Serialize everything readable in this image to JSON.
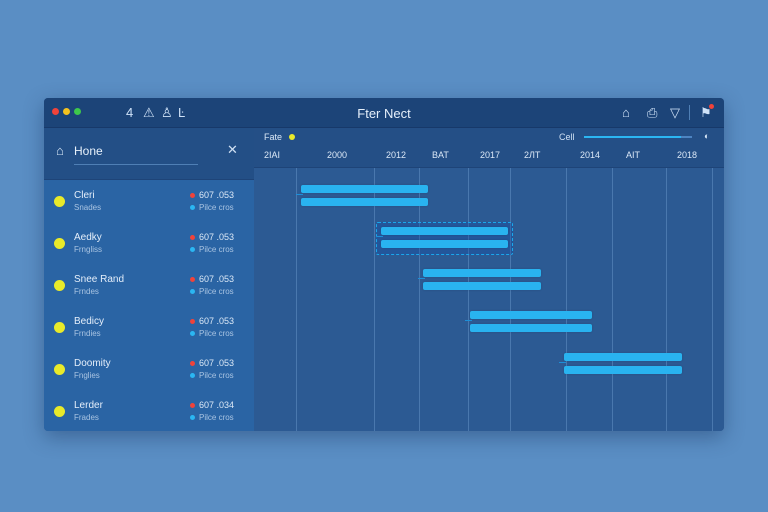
{
  "window": {
    "title": "Fter Nect",
    "toolbar_icons": [
      "4",
      "⚠",
      "♙",
      "Ŀ"
    ],
    "right_icons": [
      "⌂",
      "⎙",
      "▽",
      "⚑"
    ],
    "traffic_colors": [
      "#f0433a",
      "#f4c21f",
      "#3ec84b"
    ]
  },
  "sidebar": {
    "home_label": "Hone",
    "items": [
      {
        "name": "Cleri",
        "sub": "Snades",
        "meta1": "607 .053",
        "meta2": "Pilce cros"
      },
      {
        "name": "Aedky",
        "sub": "Frngliss",
        "meta1": "607 .053",
        "meta2": "Pilce cros"
      },
      {
        "name": "Snee Rand",
        "sub": "Frndes",
        "meta1": "607 .053",
        "meta2": "Pilce cros"
      },
      {
        "name": "Bedicy",
        "sub": "Frndies",
        "meta1": "607 .053",
        "meta2": "Pilce cros"
      },
      {
        "name": "Doomity",
        "sub": "Fnglies",
        "meta1": "607 .053",
        "meta2": "Pilce cros"
      },
      {
        "name": "Lerder",
        "sub": "Frades",
        "meta1": "607 .034",
        "meta2": "Pilce cros"
      }
    ]
  },
  "chart_header": {
    "legend_label": "Fate",
    "zoom_label": "Cell",
    "zoom_level": 0.9,
    "ticks": [
      "2IAI",
      "2000",
      "2012",
      "BAT",
      "2017",
      "2ЛТ",
      "2014",
      "AIT",
      "2018"
    ]
  },
  "gantt_tasks": [
    {
      "row": 0,
      "start": 0.1,
      "end": 0.37
    },
    {
      "row": 1,
      "start": 0.27,
      "end": 0.54,
      "selected": true
    },
    {
      "row": 2,
      "start": 0.36,
      "end": 0.61
    },
    {
      "row": 3,
      "start": 0.46,
      "end": 0.72
    },
    {
      "row": 4,
      "start": 0.66,
      "end": 0.91
    }
  ],
  "colors": {
    "accent": "#29b3f0",
    "status_yellow": "#e9ea2a",
    "meta_red": "#f0433a",
    "meta_blue": "#2bb6f2"
  }
}
